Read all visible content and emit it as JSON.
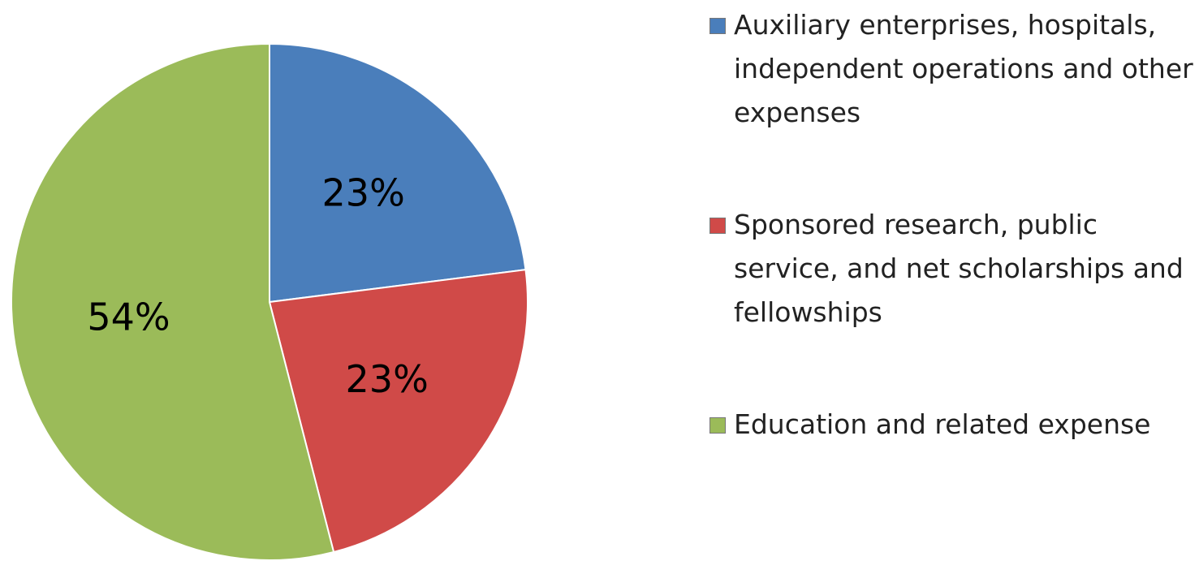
{
  "chart_data": {
    "type": "pie",
    "categories": [
      "Auxiliary enterprises, hospitals, independent operations and other expenses",
      "Sponsored research, public service, and net scholarships and fellowships",
      "Education and related expense"
    ],
    "values": [
      23,
      23,
      54
    ],
    "value_labels": [
      "23%",
      "23%",
      "54%"
    ],
    "colors": [
      "#4a7ebb",
      "#d04a48",
      "#9bbb59"
    ]
  }
}
